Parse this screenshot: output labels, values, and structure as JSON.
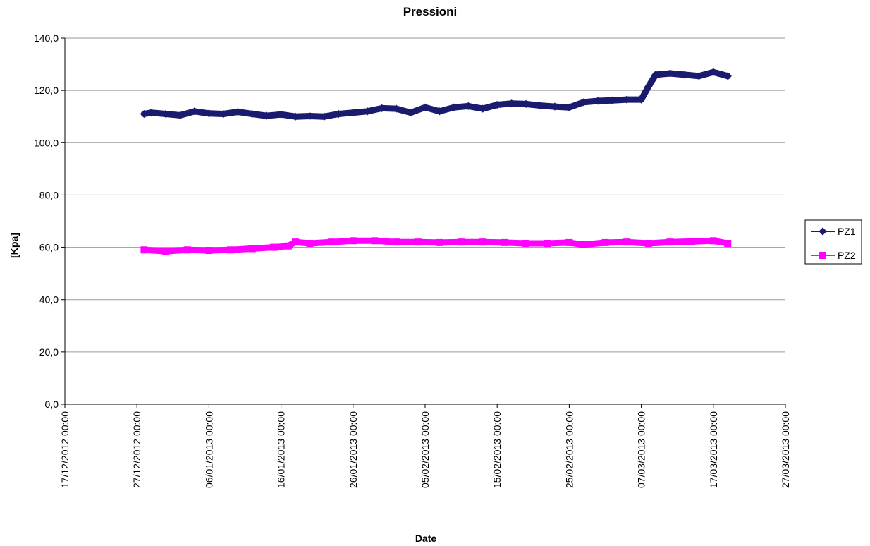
{
  "chart_data": {
    "type": "line",
    "title": "Pressioni",
    "xlabel": "Date",
    "ylabel": "[Kpa]",
    "ylim": [
      0,
      140
    ],
    "yticks": [
      "0,0",
      "20,0",
      "40,0",
      "60,0",
      "80,0",
      "100,0",
      "120,0",
      "140,0"
    ],
    "ytick_values": [
      0,
      20,
      40,
      60,
      80,
      100,
      120,
      140
    ],
    "xlim": [
      "2012-12-17",
      "2013-03-27"
    ],
    "xtick_dates": [
      "2012-12-17",
      "2012-12-27",
      "2013-01-06",
      "2013-01-16",
      "2013-01-26",
      "2013-02-05",
      "2013-02-15",
      "2013-02-25",
      "2013-03-07",
      "2013-03-17",
      "2013-03-27"
    ],
    "xticks": [
      "17/12/2012 00:00",
      "27/12/2012 00:00",
      "06/01/2013 00:00",
      "16/01/2013 00:00",
      "26/01/2013 00:00",
      "05/02/2013 00:00",
      "15/02/2013 00:00",
      "25/02/2013 00:00",
      "07/03/2013 00:00",
      "17/03/2013 00:00",
      "27/03/2013 00:00"
    ],
    "grid": true,
    "legend_position": "right",
    "series": [
      {
        "name": "PZ1",
        "color": "#1a1a6e",
        "marker": "diamond",
        "x": [
          "2012-12-28",
          "2012-12-29",
          "2012-12-31",
          "2013-01-02",
          "2013-01-04",
          "2013-01-06",
          "2013-01-08",
          "2013-01-10",
          "2013-01-12",
          "2013-01-14",
          "2013-01-16",
          "2013-01-18",
          "2013-01-20",
          "2013-01-22",
          "2013-01-24",
          "2013-01-26",
          "2013-01-28",
          "2013-01-30",
          "2013-02-01",
          "2013-02-03",
          "2013-02-05",
          "2013-02-07",
          "2013-02-09",
          "2013-02-11",
          "2013-02-13",
          "2013-02-15",
          "2013-02-17",
          "2013-02-19",
          "2013-02-21",
          "2013-02-23",
          "2013-02-25",
          "2013-02-27",
          "2013-03-01",
          "2013-03-03",
          "2013-03-05",
          "2013-03-07",
          "2013-03-08",
          "2013-03-09",
          "2013-03-11",
          "2013-03-13",
          "2013-03-15",
          "2013-03-17",
          "2013-03-19"
        ],
        "values": [
          111.0,
          111.5,
          111.0,
          110.5,
          112.0,
          111.2,
          111.0,
          111.8,
          111.0,
          110.3,
          110.8,
          110.0,
          110.2,
          110.0,
          111.0,
          111.5,
          112.0,
          113.2,
          113.0,
          111.5,
          113.5,
          112.0,
          113.5,
          114.0,
          113.0,
          114.5,
          115.0,
          114.8,
          114.2,
          113.8,
          113.5,
          115.5,
          116.0,
          116.2,
          116.5,
          116.5,
          121.5,
          126.0,
          126.5,
          126.0,
          125.5,
          127.0,
          125.5
        ]
      },
      {
        "name": "PZ2",
        "color": "#ff00ff",
        "marker": "square",
        "x": [
          "2012-12-28",
          "2012-12-31",
          "2013-01-03",
          "2013-01-06",
          "2013-01-09",
          "2013-01-12",
          "2013-01-15",
          "2013-01-17",
          "2013-01-18",
          "2013-01-20",
          "2013-01-23",
          "2013-01-26",
          "2013-01-29",
          "2013-02-01",
          "2013-02-04",
          "2013-02-07",
          "2013-02-10",
          "2013-02-13",
          "2013-02-16",
          "2013-02-19",
          "2013-02-22",
          "2013-02-25",
          "2013-02-27",
          "2013-03-02",
          "2013-03-05",
          "2013-03-08",
          "2013-03-11",
          "2013-03-14",
          "2013-03-17",
          "2013-03-19"
        ],
        "values": [
          59.0,
          58.5,
          59.0,
          58.8,
          59.0,
          59.5,
          60.0,
          60.5,
          62.0,
          61.5,
          62.0,
          62.5,
          62.5,
          62.0,
          62.0,
          61.8,
          62.0,
          62.0,
          61.8,
          61.5,
          61.5,
          61.8,
          61.0,
          61.8,
          62.0,
          61.5,
          62.0,
          62.2,
          62.5,
          61.5
        ]
      }
    ]
  }
}
